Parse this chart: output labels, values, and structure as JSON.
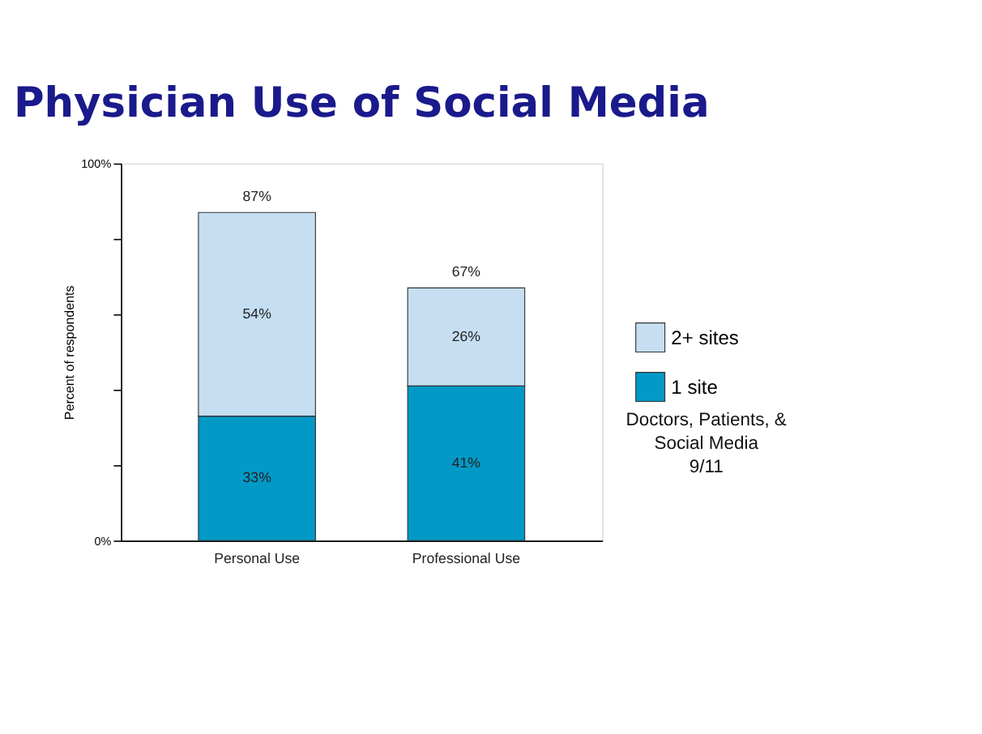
{
  "chart_data": {
    "type": "bar",
    "title": "Physician Use of Social Media",
    "ylabel": "Percent of respondents",
    "categories": [
      "Personal Use",
      "Professional Use"
    ],
    "stacked": true,
    "series": [
      {
        "name": "1 site",
        "color": "#0399c6",
        "values": [
          33,
          41
        ],
        "value_labels": [
          "33%",
          "41%"
        ]
      },
      {
        "name": "2+ sites",
        "color": "#c5def2",
        "values": [
          54,
          26
        ],
        "value_labels": [
          "54%",
          "26%"
        ]
      }
    ],
    "totals": [
      "87%",
      "67%"
    ],
    "ylim": [
      0,
      100
    ],
    "yticks": [
      {
        "value": 0,
        "label": "0%"
      },
      {
        "value": 20,
        "label": null
      },
      {
        "value": 40,
        "label": null
      },
      {
        "value": 60,
        "label": null
      },
      {
        "value": 80,
        "label": null
      },
      {
        "value": 100,
        "label": "100%"
      }
    ],
    "grid": false,
    "legend": "right",
    "annotations": [
      "Doctors, Patients, & Social Media",
      "9/11"
    ]
  }
}
